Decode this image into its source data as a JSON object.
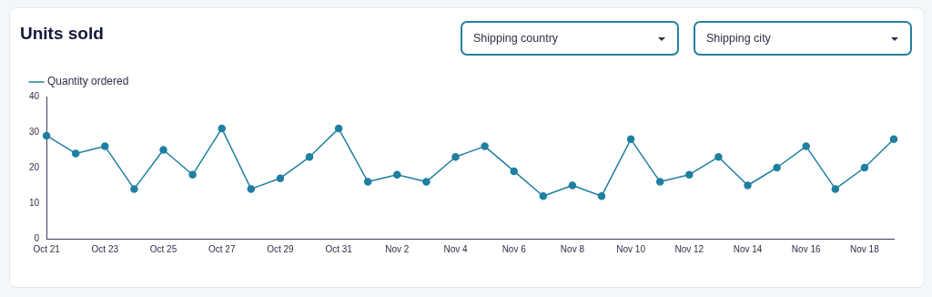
{
  "chart_data": {
    "type": "line",
    "title": "Units sold",
    "annotations": [
      "Shipping country",
      "Shipping city"
    ],
    "categories": [
      "Oct 21",
      null,
      "Oct 23",
      null,
      "Oct 25",
      null,
      "Oct 27",
      null,
      "Oct 29",
      null,
      "Oct 31",
      null,
      "Nov 2",
      null,
      "Nov 4",
      null,
      "Nov 6",
      null,
      "Nov 8",
      null,
      "Nov 10",
      null,
      "Nov 12",
      null,
      "Nov 14",
      null,
      "Nov 16",
      null,
      "Nov 18",
      null
    ],
    "series": [
      {
        "name": "Quantity ordered",
        "color": "#1f7fa1",
        "values": [
          29,
          24,
          26,
          14,
          25,
          18,
          31,
          14,
          17,
          23,
          31,
          16,
          18,
          16,
          23,
          26,
          19,
          12,
          15,
          12,
          28,
          16,
          18,
          23,
          15,
          20,
          26,
          14,
          20,
          28
        ]
      }
    ],
    "ylim": [
      0,
      40
    ],
    "yticks": [
      0,
      10,
      20,
      30,
      40
    ],
    "grid": false,
    "legend": "top left",
    "marker": "circle",
    "line_style": "solid"
  }
}
